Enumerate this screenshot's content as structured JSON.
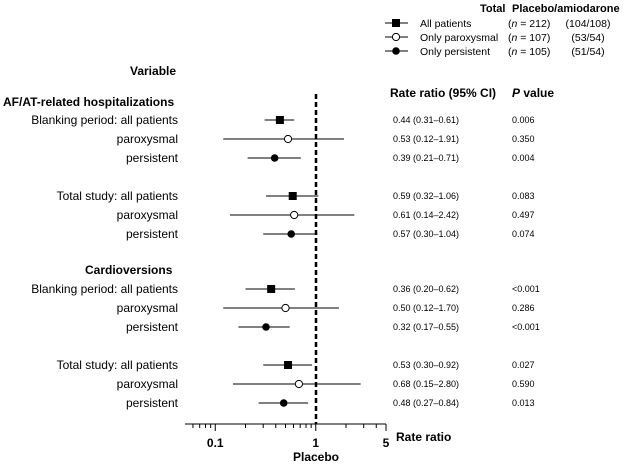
{
  "chart_data": {
    "type": "forest",
    "x_scale": "log",
    "xlim": [
      0.05,
      5
    ],
    "x_ticks": [
      "0.1",
      "1",
      "5"
    ],
    "x_tick_values": [
      0.1,
      1,
      5
    ],
    "xlabel": "Rate ratio",
    "reference_label": "Placebo",
    "reference_value": 1,
    "variable_header": "Variable",
    "rr_header": "Rate ratio (95% CI)",
    "p_header_italic": "P",
    "p_header_rest": " value",
    "legend": {
      "header_total": "Total",
      "header_ratio": "Placebo/amiodarone",
      "items": [
        {
          "marker": "filled-square",
          "label": "All patients",
          "n_prefix": "(",
          "n_var": "n",
          "n_suffix": " = 212)",
          "ratio": "(104/108)"
        },
        {
          "marker": "open-circle",
          "label": "Only paroxysmal",
          "n_prefix": "(",
          "n_var": "n",
          "n_suffix": " = 107)",
          "ratio": "(53/54)"
        },
        {
          "marker": "filled-circle",
          "label": "Only persistent",
          "n_prefix": "(",
          "n_var": "n",
          "n_suffix": " = 105)",
          "ratio": "(51/54)"
        }
      ]
    },
    "sections": [
      {
        "title": "AF/AT-related hospitalizations"
      },
      {
        "title": "Cardioversions"
      }
    ],
    "rows": [
      {
        "label": "Blanking period:  all patients",
        "marker": "filled-square",
        "rr": 0.44,
        "lo": 0.31,
        "hi": 0.61,
        "ci_text": "0.44 (0.31–0.61)",
        "p": "0.006"
      },
      {
        "label": "paroxysmal",
        "marker": "open-circle",
        "rr": 0.53,
        "lo": 0.12,
        "hi": 1.91,
        "ci_text": "0.53 (0.12–1.91)",
        "p": "0.350"
      },
      {
        "label": "persistent",
        "marker": "filled-circle",
        "rr": 0.39,
        "lo": 0.21,
        "hi": 0.71,
        "ci_text": "0.39 (0.21–0.71)",
        "p": "0.004"
      },
      {
        "label": "Total study: all patients",
        "marker": "filled-square",
        "rr": 0.59,
        "lo": 0.32,
        "hi": 1.06,
        "ci_text": "0.59 (0.32–1.06)",
        "p": "0.083"
      },
      {
        "label": "paroxysmal",
        "marker": "open-circle",
        "rr": 0.61,
        "lo": 0.14,
        "hi": 2.42,
        "ci_text": "0.61 (0.14–2.42)",
        "p": "0.497"
      },
      {
        "label": "persistent",
        "marker": "filled-circle",
        "rr": 0.57,
        "lo": 0.3,
        "hi": 1.04,
        "ci_text": "0.57 (0.30–1.04)",
        "p": "0.074"
      },
      {
        "label": "Blanking period:  all patients",
        "marker": "filled-square",
        "rr": 0.36,
        "lo": 0.2,
        "hi": 0.62,
        "ci_text": "0.36 (0.20–0.62)",
        "p": "<0.001"
      },
      {
        "label": "paroxysmal",
        "marker": "open-circle",
        "rr": 0.5,
        "lo": 0.12,
        "hi": 1.7,
        "ci_text": "0.50 (0.12–1.70)",
        "p": "0.286"
      },
      {
        "label": "persistent",
        "marker": "filled-circle",
        "rr": 0.32,
        "lo": 0.17,
        "hi": 0.55,
        "ci_text": "0.32 (0.17–0.55)",
        "p": "<0.001"
      },
      {
        "label": "Total study: all patients",
        "marker": "filled-square",
        "rr": 0.53,
        "lo": 0.3,
        "hi": 0.92,
        "ci_text": "0.53 (0.30–0.92)",
        "p": "0.027"
      },
      {
        "label": "paroxysmal",
        "marker": "open-circle",
        "rr": 0.68,
        "lo": 0.15,
        "hi": 2.8,
        "ci_text": "0.68 (0.15–2.80)",
        "p": "0.590"
      },
      {
        "label": "persistent",
        "marker": "filled-circle",
        "rr": 0.48,
        "lo": 0.27,
        "hi": 0.84,
        "ci_text": "0.48 (0.27–0.84)",
        "p": "0.013"
      }
    ]
  }
}
